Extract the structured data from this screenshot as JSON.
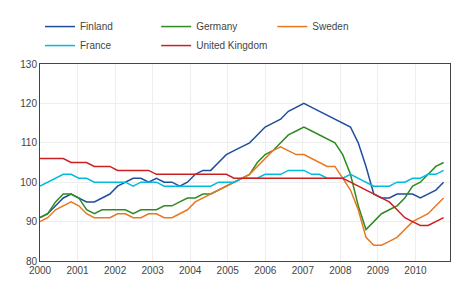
{
  "chart_data": {
    "type": "line",
    "x": [
      2000,
      2000.2067307692,
      2000.4134615385,
      2000.6201923077,
      2000.8269230769,
      2001.0336538462,
      2001.2403846154,
      2001.4471153846,
      2001.6538461538,
      2001.8605769231,
      2002.0673076923,
      2002.2740384615,
      2002.4807692308,
      2002.6875,
      2002.8942307692,
      2003.1009615385,
      2003.3076923077,
      2003.5144230769,
      2003.7211538462,
      2003.9278846154,
      2004.1346153846,
      2004.3413461538,
      2004.5480769231,
      2004.7548076923,
      2004.9615384615,
      2005.1682692308,
      2005.375,
      2005.5817307692,
      2005.7884615385,
      2005.9951923077,
      2006.2019230769,
      2006.4086538462,
      2006.6153846154,
      2006.8221153846,
      2007.0288461538,
      2007.2355769231,
      2007.4423076923,
      2007.6490384615,
      2007.8557692308,
      2008.0625,
      2008.2692307692,
      2008.4759615385,
      2008.6826923077,
      2008.8894230769,
      2009.0961538462,
      2009.3028846154,
      2009.5096153846,
      2009.7163461538,
      2009.9230769231,
      2010.1298076923,
      2010.3365384615,
      2010.5432692308,
      2010.75
    ],
    "series": [
      {
        "name": "Finland",
        "color": "#1F4E9B",
        "values": [
          91,
          92,
          94,
          96,
          97,
          96,
          95,
          95,
          96,
          97,
          99,
          100,
          101,
          101,
          100,
          101,
          100,
          100,
          99,
          100,
          102,
          103,
          103,
          105,
          107,
          108,
          109,
          110,
          112,
          114,
          115,
          116,
          118,
          119,
          120,
          119,
          118,
          117,
          116,
          115,
          114,
          110,
          104,
          97,
          96,
          96,
          97,
          97,
          97,
          96,
          97,
          98,
          100
        ]
      },
      {
        "name": "Germany",
        "color": "#2E8B22",
        "values": [
          91,
          92,
          95,
          97,
          97,
          96,
          93,
          92,
          93,
          93,
          93,
          93,
          92,
          93,
          93,
          93,
          94,
          94,
          95,
          96,
          96,
          97,
          97,
          98,
          99,
          100,
          101,
          102,
          105,
          107,
          108,
          110,
          112,
          113,
          114,
          113,
          112,
          111,
          110,
          107,
          102,
          94,
          88,
          90,
          92,
          93,
          94,
          96,
          99,
          100,
          102,
          104,
          105
        ]
      },
      {
        "name": "Sweden",
        "color": "#E87820",
        "values": [
          90,
          91,
          93,
          94,
          95,
          94,
          92,
          91,
          91,
          91,
          92,
          92,
          91,
          91,
          92,
          92,
          91,
          91,
          92,
          93,
          95,
          96,
          97,
          98,
          99,
          100,
          101,
          102,
          104,
          106,
          108,
          109,
          108,
          107,
          107,
          106,
          105,
          104,
          104,
          101,
          98,
          93,
          86,
          84,
          84,
          85,
          86,
          88,
          90,
          91,
          92,
          94,
          96
        ]
      },
      {
        "name": "France",
        "color": "#00BBDD",
        "values": [
          99,
          100,
          101,
          102,
          102,
          101,
          101,
          100,
          100,
          100,
          100,
          100,
          99,
          100,
          100,
          100,
          99,
          99,
          99,
          99,
          99,
          99,
          99,
          100,
          100,
          100,
          101,
          101,
          101,
          102,
          102,
          102,
          103,
          103,
          103,
          102,
          102,
          101,
          101,
          101,
          102,
          101,
          100,
          99,
          99,
          99,
          100,
          100,
          101,
          101,
          102,
          102,
          103
        ]
      },
      {
        "name": "United Kingdom",
        "color": "#CC2020",
        "values": [
          106,
          106,
          106,
          106,
          105,
          105,
          105,
          104,
          104,
          104,
          103,
          103,
          103,
          103,
          103,
          102,
          102,
          102,
          102,
          102,
          102,
          102,
          102,
          102,
          102,
          101,
          101,
          101,
          101,
          101,
          101,
          101,
          101,
          101,
          101,
          101,
          101,
          101,
          101,
          101,
          100,
          99,
          98,
          97,
          96,
          95,
          93,
          91,
          90,
          89,
          89,
          90,
          91
        ]
      }
    ],
    "xlim": [
      2000,
      2010.92
    ],
    "xticks": [
      2000,
      2001,
      2002,
      2003,
      2004,
      2005,
      2006,
      2007,
      2008,
      2009,
      2010
    ],
    "ylim": [
      80,
      130
    ],
    "yticks": [
      80,
      90,
      100,
      110,
      120,
      130
    ],
    "grid": true,
    "legend": "upper left"
  }
}
